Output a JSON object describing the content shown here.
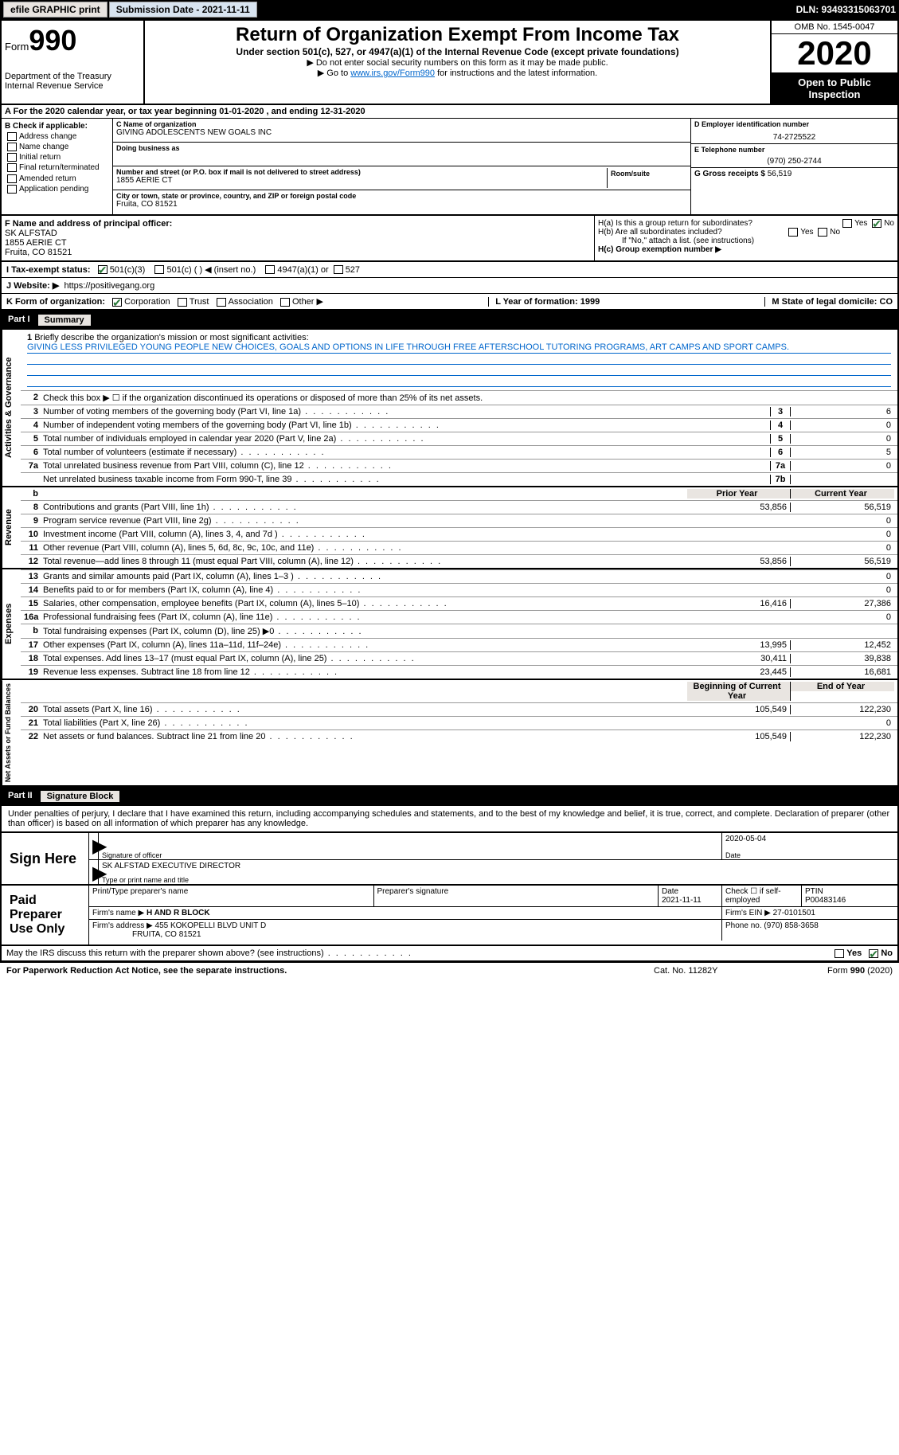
{
  "topbar": {
    "efile": "efile GRAPHIC print",
    "submission_label": "Submission Date - 2021-11-11",
    "dln": "DLN: 93493315063701"
  },
  "header": {
    "form_prefix": "Form",
    "form_no": "990",
    "dept": "Department of the Treasury\nInternal Revenue Service",
    "title": "Return of Organization Exempt From Income Tax",
    "subtitle": "Under section 501(c), 527, or 4947(a)(1) of the Internal Revenue Code (except private foundations)",
    "note1": "▶ Do not enter social security numbers on this form as it may be made public.",
    "note2_pre": "▶ Go to ",
    "note2_link": "www.irs.gov/Form990",
    "note2_post": " for instructions and the latest information.",
    "omb": "OMB No. 1545-0047",
    "year": "2020",
    "opi": "Open to Public Inspection"
  },
  "row_a": "A For the 2020 calendar year, or tax year beginning 01-01-2020   , and ending 12-31-2020",
  "section_b": {
    "label": "B Check if applicable:",
    "items": [
      "Address change",
      "Name change",
      "Initial return",
      "Final return/terminated",
      "Amended return",
      "Application pending"
    ]
  },
  "section_c": {
    "name_label": "C Name of organization",
    "name": "GIVING ADOLESCENTS NEW GOALS INC",
    "dba_label": "Doing business as",
    "street_label": "Number and street (or P.O. box if mail is not delivered to street address)",
    "room_label": "Room/suite",
    "street": "1855 AERIE CT",
    "city_label": "City or town, state or province, country, and ZIP or foreign postal code",
    "city": "Fruita, CO  81521"
  },
  "section_d": {
    "label": "D Employer identification number",
    "value": "74-2725522"
  },
  "section_e": {
    "label": "E Telephone number",
    "value": "(970) 250-2744"
  },
  "section_g": {
    "label": "G Gross receipts $",
    "value": "56,519"
  },
  "section_f": {
    "label": "F Name and address of principal officer:",
    "name": "SK ALFSTAD",
    "street": "1855 AERIE CT",
    "city": "Fruita, CO  81521"
  },
  "section_h": {
    "ha": "H(a)  Is this a group return for subordinates?",
    "hb": "H(b)  Are all subordinates included?",
    "hb_note": "If \"No,\" attach a list. (see instructions)",
    "hc": "H(c)  Group exemption number ▶"
  },
  "row_i": {
    "label": "I   Tax-exempt status:",
    "o1": "501(c)(3)",
    "o2": "501(c) (  ) ◀ (insert no.)",
    "o3": "4947(a)(1) or",
    "o4": "527"
  },
  "row_j": {
    "label": "J   Website: ▶",
    "value": "https://positivegang.org"
  },
  "row_k": {
    "label": "K Form of organization:",
    "o1": "Corporation",
    "o2": "Trust",
    "o3": "Association",
    "o4": "Other ▶"
  },
  "row_l": {
    "year": "L Year of formation: 1999",
    "state": "M State of legal domicile: CO"
  },
  "part1": {
    "num": "Part I",
    "title": "Summary",
    "q1": "Briefly describe the organization's mission or most significant activities:",
    "mission": "GIVING LESS PRIVILEGED YOUNG PEOPLE NEW CHOICES, GOALS AND OPTIONS IN LIFE THROUGH FREE AFTERSCHOOL TUTORING PROGRAMS, ART CAMPS AND SPORT CAMPS.",
    "q2": "Check this box ▶ ☐ if the organization discontinued its operations or disposed of more than 25% of its net assets.",
    "lines_gov": [
      {
        "n": "3",
        "t": "Number of voting members of the governing body (Part VI, line 1a)",
        "c": "3",
        "v": "6"
      },
      {
        "n": "4",
        "t": "Number of independent voting members of the governing body (Part VI, line 1b)",
        "c": "4",
        "v": "0"
      },
      {
        "n": "5",
        "t": "Total number of individuals employed in calendar year 2020 (Part V, line 2a)",
        "c": "5",
        "v": "0"
      },
      {
        "n": "6",
        "t": "Total number of volunteers (estimate if necessary)",
        "c": "6",
        "v": "5"
      },
      {
        "n": "7a",
        "t": "Total unrelated business revenue from Part VIII, column (C), line 12",
        "c": "7a",
        "v": "0"
      },
      {
        "n": "",
        "t": "Net unrelated business taxable income from Form 990-T, line 39",
        "c": "7b",
        "v": ""
      }
    ],
    "col_py": "Prior Year",
    "col_cy": "Current Year",
    "lines_rev": [
      {
        "n": "8",
        "t": "Contributions and grants (Part VIII, line 1h)",
        "py": "53,856",
        "cy": "56,519"
      },
      {
        "n": "9",
        "t": "Program service revenue (Part VIII, line 2g)",
        "py": "",
        "cy": "0"
      },
      {
        "n": "10",
        "t": "Investment income (Part VIII, column (A), lines 3, 4, and 7d )",
        "py": "",
        "cy": "0"
      },
      {
        "n": "11",
        "t": "Other revenue (Part VIII, column (A), lines 5, 6d, 8c, 9c, 10c, and 11e)",
        "py": "",
        "cy": "0"
      },
      {
        "n": "12",
        "t": "Total revenue—add lines 8 through 11 (must equal Part VIII, column (A), line 12)",
        "py": "53,856",
        "cy": "56,519"
      }
    ],
    "lines_exp": [
      {
        "n": "13",
        "t": "Grants and similar amounts paid (Part IX, column (A), lines 1–3 )",
        "py": "",
        "cy": "0"
      },
      {
        "n": "14",
        "t": "Benefits paid to or for members (Part IX, column (A), line 4)",
        "py": "",
        "cy": "0"
      },
      {
        "n": "15",
        "t": "Salaries, other compensation, employee benefits (Part IX, column (A), lines 5–10)",
        "py": "16,416",
        "cy": "27,386"
      },
      {
        "n": "16a",
        "t": "Professional fundraising fees (Part IX, column (A), line 11e)",
        "py": "",
        "cy": "0"
      },
      {
        "n": "b",
        "t": "Total fundraising expenses (Part IX, column (D), line 25) ▶0",
        "py": "shade",
        "cy": "shade"
      },
      {
        "n": "17",
        "t": "Other expenses (Part IX, column (A), lines 11a–11d, 11f–24e)",
        "py": "13,995",
        "cy": "12,452"
      },
      {
        "n": "18",
        "t": "Total expenses. Add lines 13–17 (must equal Part IX, column (A), line 25)",
        "py": "30,411",
        "cy": "39,838"
      },
      {
        "n": "19",
        "t": "Revenue less expenses. Subtract line 18 from line 12",
        "py": "23,445",
        "cy": "16,681"
      }
    ],
    "col_boy": "Beginning of Current Year",
    "col_eoy": "End of Year",
    "lines_na": [
      {
        "n": "20",
        "t": "Total assets (Part X, line 16)",
        "py": "105,549",
        "cy": "122,230"
      },
      {
        "n": "21",
        "t": "Total liabilities (Part X, line 26)",
        "py": "",
        "cy": "0"
      },
      {
        "n": "22",
        "t": "Net assets or fund balances. Subtract line 21 from line 20",
        "py": "105,549",
        "cy": "122,230"
      }
    ],
    "tab_gov": "Activities & Governance",
    "tab_rev": "Revenue",
    "tab_exp": "Expenses",
    "tab_na": "Net Assets or Fund Balances"
  },
  "part2": {
    "num": "Part II",
    "title": "Signature Block",
    "penalty": "Under penalties of perjury, I declare that I have examined this return, including accompanying schedules and statements, and to the best of my knowledge and belief, it is true, correct, and complete. Declaration of preparer (other than officer) is based on all information of which preparer has any knowledge.",
    "sign_here": "Sign Here",
    "sig_officer": "Signature of officer",
    "sig_date": "2020-05-04",
    "date_lbl": "Date",
    "officer": "SK ALFSTAD EXECUTIVE DIRECTOR",
    "officer_lbl": "Type or print name and title",
    "paid": "Paid Preparer Use Only",
    "prep_name_lbl": "Print/Type preparer's name",
    "prep_sig_lbl": "Preparer's signature",
    "prep_date": "2021-11-11",
    "self_emp": "Check ☐ if self-employed",
    "ptin_lbl": "PTIN",
    "ptin": "P00483146",
    "firm_name_lbl": "Firm's name  ▶",
    "firm_name": "H AND R BLOCK",
    "firm_ein_lbl": "Firm's EIN ▶",
    "firm_ein": "27-0101501",
    "firm_addr_lbl": "Firm's address ▶",
    "firm_addr": "455 KOKOPELLI BLVD UNIT D",
    "firm_city": "FRUITA, CO  81521",
    "phone_lbl": "Phone no.",
    "phone": "(970) 858-3658",
    "irs_q": "May the IRS discuss this return with the preparer shown above? (see instructions)"
  },
  "footer": {
    "left": "For Paperwork Reduction Act Notice, see the separate instructions.",
    "mid": "Cat. No. 11282Y",
    "right": "Form 990 (2020)"
  },
  "yes": "Yes",
  "no": "No"
}
